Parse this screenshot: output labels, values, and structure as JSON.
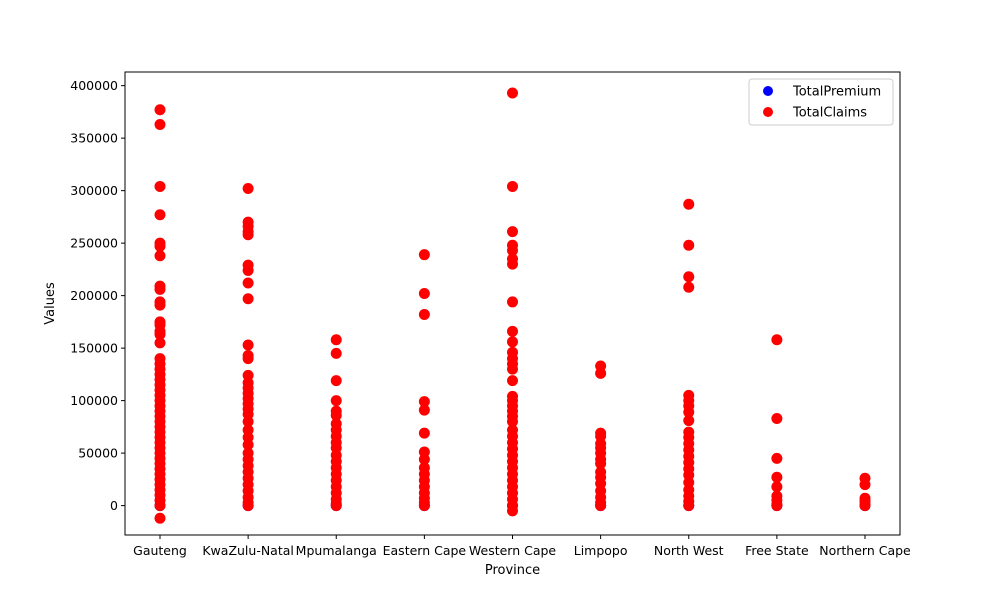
{
  "chart_data": {
    "type": "scatter",
    "title": "",
    "xlabel": "Province",
    "ylabel": "Values",
    "categories": [
      "Gauteng",
      "KwaZulu-Natal",
      "Mpumalanga",
      "Eastern Cape",
      "Western Cape",
      "Limpopo",
      "North West",
      "Free State",
      "Northern Cape"
    ],
    "ylim": [
      -28000,
      413000
    ],
    "yticks": [
      0,
      50000,
      100000,
      150000,
      200000,
      250000,
      300000,
      350000,
      400000
    ],
    "ytick_labels": [
      "0",
      "50000",
      "100000",
      "150000",
      "200000",
      "250000",
      "300000",
      "350000",
      "400000"
    ],
    "grid": false,
    "legend_position": "top-right",
    "series": [
      {
        "name": "TotalPremium",
        "color": "#0000ff",
        "points": [
          {
            "x": "Gauteng",
            "y": 0
          },
          {
            "x": "KwaZulu-Natal",
            "y": 0
          },
          {
            "x": "Mpumalanga",
            "y": 0
          },
          {
            "x": "Eastern Cape",
            "y": 0
          },
          {
            "x": "Western Cape",
            "y": 0
          },
          {
            "x": "Limpopo",
            "y": 0
          },
          {
            "x": "North West",
            "y": 0
          },
          {
            "x": "Free State",
            "y": 0
          },
          {
            "x": "Northern Cape",
            "y": 0
          }
        ]
      },
      {
        "name": "TotalClaims",
        "color": "#ff0000",
        "points": [
          {
            "x": "Gauteng",
            "y": 377000
          },
          {
            "x": "Gauteng",
            "y": 363000
          },
          {
            "x": "Gauteng",
            "y": 304000
          },
          {
            "x": "Gauteng",
            "y": 277000
          },
          {
            "x": "Gauteng",
            "y": 250000
          },
          {
            "x": "Gauteng",
            "y": 247000
          },
          {
            "x": "Gauteng",
            "y": 238000
          },
          {
            "x": "Gauteng",
            "y": 209000
          },
          {
            "x": "Gauteng",
            "y": 206000
          },
          {
            "x": "Gauteng",
            "y": 194000
          },
          {
            "x": "Gauteng",
            "y": 191000
          },
          {
            "x": "Gauteng",
            "y": 175000
          },
          {
            "x": "Gauteng",
            "y": 172000
          },
          {
            "x": "Gauteng",
            "y": 166000
          },
          {
            "x": "Gauteng",
            "y": 163000
          },
          {
            "x": "Gauteng",
            "y": 155000
          },
          {
            "x": "Gauteng",
            "y": 140000
          },
          {
            "x": "Gauteng",
            "y": 135000
          },
          {
            "x": "Gauteng",
            "y": 130000
          },
          {
            "x": "Gauteng",
            "y": 125000
          },
          {
            "x": "Gauteng",
            "y": 120000
          },
          {
            "x": "Gauteng",
            "y": 115000
          },
          {
            "x": "Gauteng",
            "y": 110000
          },
          {
            "x": "Gauteng",
            "y": 105000
          },
          {
            "x": "Gauteng",
            "y": 100000
          },
          {
            "x": "Gauteng",
            "y": 95000
          },
          {
            "x": "Gauteng",
            "y": 90000
          },
          {
            "x": "Gauteng",
            "y": 85000
          },
          {
            "x": "Gauteng",
            "y": 80000
          },
          {
            "x": "Gauteng",
            "y": 75000
          },
          {
            "x": "Gauteng",
            "y": 70000
          },
          {
            "x": "Gauteng",
            "y": 65000
          },
          {
            "x": "Gauteng",
            "y": 60000
          },
          {
            "x": "Gauteng",
            "y": 55000
          },
          {
            "x": "Gauteng",
            "y": 50000
          },
          {
            "x": "Gauteng",
            "y": 45000
          },
          {
            "x": "Gauteng",
            "y": 40000
          },
          {
            "x": "Gauteng",
            "y": 35000
          },
          {
            "x": "Gauteng",
            "y": 30000
          },
          {
            "x": "Gauteng",
            "y": 25000
          },
          {
            "x": "Gauteng",
            "y": 20000
          },
          {
            "x": "Gauteng",
            "y": 15000
          },
          {
            "x": "Gauteng",
            "y": 10000
          },
          {
            "x": "Gauteng",
            "y": 5000
          },
          {
            "x": "Gauteng",
            "y": 0
          },
          {
            "x": "Gauteng",
            "y": -12000
          },
          {
            "x": "KwaZulu-Natal",
            "y": 302000
          },
          {
            "x": "KwaZulu-Natal",
            "y": 270000
          },
          {
            "x": "KwaZulu-Natal",
            "y": 266000
          },
          {
            "x": "KwaZulu-Natal",
            "y": 261000
          },
          {
            "x": "KwaZulu-Natal",
            "y": 258000
          },
          {
            "x": "KwaZulu-Natal",
            "y": 229000
          },
          {
            "x": "KwaZulu-Natal",
            "y": 224000
          },
          {
            "x": "KwaZulu-Natal",
            "y": 212000
          },
          {
            "x": "KwaZulu-Natal",
            "y": 197000
          },
          {
            "x": "KwaZulu-Natal",
            "y": 153000
          },
          {
            "x": "KwaZulu-Natal",
            "y": 143000
          },
          {
            "x": "KwaZulu-Natal",
            "y": 140000
          },
          {
            "x": "KwaZulu-Natal",
            "y": 124000
          },
          {
            "x": "KwaZulu-Natal",
            "y": 117000
          },
          {
            "x": "KwaZulu-Natal",
            "y": 112000
          },
          {
            "x": "KwaZulu-Natal",
            "y": 107000
          },
          {
            "x": "KwaZulu-Natal",
            "y": 102000
          },
          {
            "x": "KwaZulu-Natal",
            "y": 97000
          },
          {
            "x": "KwaZulu-Natal",
            "y": 92000
          },
          {
            "x": "KwaZulu-Natal",
            "y": 87000
          },
          {
            "x": "KwaZulu-Natal",
            "y": 80000
          },
          {
            "x": "KwaZulu-Natal",
            "y": 72000
          },
          {
            "x": "KwaZulu-Natal",
            "y": 65000
          },
          {
            "x": "KwaZulu-Natal",
            "y": 58000
          },
          {
            "x": "KwaZulu-Natal",
            "y": 50000
          },
          {
            "x": "KwaZulu-Natal",
            "y": 44000
          },
          {
            "x": "KwaZulu-Natal",
            "y": 38000
          },
          {
            "x": "KwaZulu-Natal",
            "y": 32000
          },
          {
            "x": "KwaZulu-Natal",
            "y": 26000
          },
          {
            "x": "KwaZulu-Natal",
            "y": 20000
          },
          {
            "x": "KwaZulu-Natal",
            "y": 14000
          },
          {
            "x": "KwaZulu-Natal",
            "y": 8000
          },
          {
            "x": "KwaZulu-Natal",
            "y": 3000
          },
          {
            "x": "KwaZulu-Natal",
            "y": 0
          },
          {
            "x": "Mpumalanga",
            "y": 158000
          },
          {
            "x": "Mpumalanga",
            "y": 145000
          },
          {
            "x": "Mpumalanga",
            "y": 119000
          },
          {
            "x": "Mpumalanga",
            "y": 100000
          },
          {
            "x": "Mpumalanga",
            "y": 90000
          },
          {
            "x": "Mpumalanga",
            "y": 86000
          },
          {
            "x": "Mpumalanga",
            "y": 78000
          },
          {
            "x": "Mpumalanga",
            "y": 72000
          },
          {
            "x": "Mpumalanga",
            "y": 66000
          },
          {
            "x": "Mpumalanga",
            "y": 60000
          },
          {
            "x": "Mpumalanga",
            "y": 55000
          },
          {
            "x": "Mpumalanga",
            "y": 48000
          },
          {
            "x": "Mpumalanga",
            "y": 42000
          },
          {
            "x": "Mpumalanga",
            "y": 36000
          },
          {
            "x": "Mpumalanga",
            "y": 30000
          },
          {
            "x": "Mpumalanga",
            "y": 24000
          },
          {
            "x": "Mpumalanga",
            "y": 18000
          },
          {
            "x": "Mpumalanga",
            "y": 12000
          },
          {
            "x": "Mpumalanga",
            "y": 6000
          },
          {
            "x": "Mpumalanga",
            "y": 2000
          },
          {
            "x": "Mpumalanga",
            "y": 0
          },
          {
            "x": "Eastern Cape",
            "y": 239000
          },
          {
            "x": "Eastern Cape",
            "y": 202000
          },
          {
            "x": "Eastern Cape",
            "y": 182000
          },
          {
            "x": "Eastern Cape",
            "y": 99000
          },
          {
            "x": "Eastern Cape",
            "y": 91000
          },
          {
            "x": "Eastern Cape",
            "y": 69000
          },
          {
            "x": "Eastern Cape",
            "y": 51000
          },
          {
            "x": "Eastern Cape",
            "y": 44000
          },
          {
            "x": "Eastern Cape",
            "y": 36000
          },
          {
            "x": "Eastern Cape",
            "y": 30000
          },
          {
            "x": "Eastern Cape",
            "y": 24000
          },
          {
            "x": "Eastern Cape",
            "y": 18000
          },
          {
            "x": "Eastern Cape",
            "y": 12000
          },
          {
            "x": "Eastern Cape",
            "y": 7000
          },
          {
            "x": "Eastern Cape",
            "y": 3000
          },
          {
            "x": "Eastern Cape",
            "y": 0
          },
          {
            "x": "Western Cape",
            "y": 393000
          },
          {
            "x": "Western Cape",
            "y": 304000
          },
          {
            "x": "Western Cape",
            "y": 261000
          },
          {
            "x": "Western Cape",
            "y": 248000
          },
          {
            "x": "Western Cape",
            "y": 243000
          },
          {
            "x": "Western Cape",
            "y": 235000
          },
          {
            "x": "Western Cape",
            "y": 230000
          },
          {
            "x": "Western Cape",
            "y": 194000
          },
          {
            "x": "Western Cape",
            "y": 166000
          },
          {
            "x": "Western Cape",
            "y": 156000
          },
          {
            "x": "Western Cape",
            "y": 146000
          },
          {
            "x": "Western Cape",
            "y": 140000
          },
          {
            "x": "Western Cape",
            "y": 135000
          },
          {
            "x": "Western Cape",
            "y": 130000
          },
          {
            "x": "Western Cape",
            "y": 119000
          },
          {
            "x": "Western Cape",
            "y": 104000
          },
          {
            "x": "Western Cape",
            "y": 100000
          },
          {
            "x": "Western Cape",
            "y": 95000
          },
          {
            "x": "Western Cape",
            "y": 90000
          },
          {
            "x": "Western Cape",
            "y": 85000
          },
          {
            "x": "Western Cape",
            "y": 80000
          },
          {
            "x": "Western Cape",
            "y": 72000
          },
          {
            "x": "Western Cape",
            "y": 66000
          },
          {
            "x": "Western Cape",
            "y": 60000
          },
          {
            "x": "Western Cape",
            "y": 54000
          },
          {
            "x": "Western Cape",
            "y": 48000
          },
          {
            "x": "Western Cape",
            "y": 42000
          },
          {
            "x": "Western Cape",
            "y": 36000
          },
          {
            "x": "Western Cape",
            "y": 30000
          },
          {
            "x": "Western Cape",
            "y": 24000
          },
          {
            "x": "Western Cape",
            "y": 18000
          },
          {
            "x": "Western Cape",
            "y": 12000
          },
          {
            "x": "Western Cape",
            "y": 6000
          },
          {
            "x": "Western Cape",
            "y": 0
          },
          {
            "x": "Western Cape",
            "y": -5000
          },
          {
            "x": "Limpopo",
            "y": 133000
          },
          {
            "x": "Limpopo",
            "y": 126000
          },
          {
            "x": "Limpopo",
            "y": 69000
          },
          {
            "x": "Limpopo",
            "y": 66000
          },
          {
            "x": "Limpopo",
            "y": 59000
          },
          {
            "x": "Limpopo",
            "y": 55000
          },
          {
            "x": "Limpopo",
            "y": 50000
          },
          {
            "x": "Limpopo",
            "y": 44000
          },
          {
            "x": "Limpopo",
            "y": 40000
          },
          {
            "x": "Limpopo",
            "y": 32000
          },
          {
            "x": "Limpopo",
            "y": 27000
          },
          {
            "x": "Limpopo",
            "y": 21000
          },
          {
            "x": "Limpopo",
            "y": 14000
          },
          {
            "x": "Limpopo",
            "y": 8000
          },
          {
            "x": "Limpopo",
            "y": 3000
          },
          {
            "x": "Limpopo",
            "y": 0
          },
          {
            "x": "North West",
            "y": 287000
          },
          {
            "x": "North West",
            "y": 248000
          },
          {
            "x": "North West",
            "y": 218000
          },
          {
            "x": "North West",
            "y": 208000
          },
          {
            "x": "North West",
            "y": 105000
          },
          {
            "x": "North West",
            "y": 100000
          },
          {
            "x": "North West",
            "y": 95000
          },
          {
            "x": "North West",
            "y": 89000
          },
          {
            "x": "North West",
            "y": 81000
          },
          {
            "x": "North West",
            "y": 70000
          },
          {
            "x": "North West",
            "y": 65000
          },
          {
            "x": "North West",
            "y": 59000
          },
          {
            "x": "North West",
            "y": 53000
          },
          {
            "x": "North West",
            "y": 47000
          },
          {
            "x": "North West",
            "y": 41000
          },
          {
            "x": "North West",
            "y": 35000
          },
          {
            "x": "North West",
            "y": 29000
          },
          {
            "x": "North West",
            "y": 22000
          },
          {
            "x": "North West",
            "y": 15000
          },
          {
            "x": "North West",
            "y": 9000
          },
          {
            "x": "North West",
            "y": 4000
          },
          {
            "x": "North West",
            "y": 0
          },
          {
            "x": "Free State",
            "y": 158000
          },
          {
            "x": "Free State",
            "y": 83000
          },
          {
            "x": "Free State",
            "y": 45000
          },
          {
            "x": "Free State",
            "y": 27000
          },
          {
            "x": "Free State",
            "y": 18000
          },
          {
            "x": "Free State",
            "y": 9000
          },
          {
            "x": "Free State",
            "y": 5000
          },
          {
            "x": "Free State",
            "y": 1000
          },
          {
            "x": "Free State",
            "y": 0
          },
          {
            "x": "Northern Cape",
            "y": 26000
          },
          {
            "x": "Northern Cape",
            "y": 20000
          },
          {
            "x": "Northern Cape",
            "y": 7000
          },
          {
            "x": "Northern Cape",
            "y": 4000
          },
          {
            "x": "Northern Cape",
            "y": 1000
          },
          {
            "x": "Northern Cape",
            "y": 0
          }
        ]
      }
    ]
  }
}
